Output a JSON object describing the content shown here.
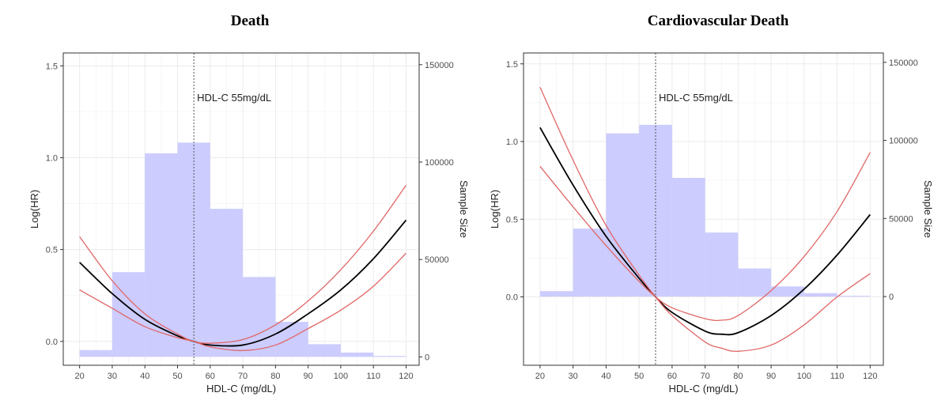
{
  "chart_data": [
    {
      "type": "histogram+line",
      "title": "Death",
      "xlabel": "HDL-C (mg/dL)",
      "ylabel": "Log(HR)",
      "y2label": "Sample Size",
      "annotation": "HDL-C 55mg/dL",
      "ref_x": 55,
      "xlim": [
        15,
        124
      ],
      "ylim": [
        -0.13,
        1.57
      ],
      "y2lim": [
        -4300,
        156000
      ],
      "x_ticks": [
        20,
        30,
        40,
        50,
        60,
        70,
        80,
        90,
        100,
        110,
        120
      ],
      "y_ticks": [
        0.0,
        0.5,
        1.0,
        1.5
      ],
      "y_tick_labels": [
        "0.0",
        "0.5",
        "1.0",
        "1.5"
      ],
      "y2_ticks": [
        0,
        50000,
        100000,
        150000
      ],
      "y2_tick_labels": [
        "0",
        "50000",
        "100000",
        "150000"
      ],
      "histogram": {
        "bin_edges": [
          20,
          30,
          40,
          50,
          60,
          70,
          80,
          90,
          100,
          110,
          120
        ],
        "counts": [
          3500,
          43500,
          104500,
          110000,
          76000,
          41000,
          18000,
          6500,
          2200,
          500
        ]
      },
      "series": [
        {
          "name": "Log(HR)",
          "x": [
            20,
            30,
            40,
            50,
            55,
            60,
            70,
            80,
            90,
            100,
            110,
            120
          ],
          "y": [
            0.43,
            0.26,
            0.12,
            0.03,
            0.0,
            -0.02,
            -0.02,
            0.04,
            0.15,
            0.28,
            0.45,
            0.66
          ]
        },
        {
          "name": "Upper 95% CI",
          "x": [
            20,
            30,
            40,
            50,
            55,
            60,
            70,
            80,
            90,
            100,
            110,
            120
          ],
          "y": [
            0.57,
            0.33,
            0.15,
            0.04,
            0.0,
            -0.01,
            0.01,
            0.09,
            0.22,
            0.39,
            0.6,
            0.85
          ]
        },
        {
          "name": "Lower 95% CI",
          "x": [
            20,
            30,
            40,
            50,
            55,
            60,
            70,
            80,
            90,
            100,
            110,
            120
          ],
          "y": [
            0.28,
            0.18,
            0.08,
            0.02,
            0.0,
            -0.03,
            -0.05,
            -0.02,
            0.07,
            0.17,
            0.3,
            0.48
          ]
        }
      ]
    },
    {
      "type": "histogram+line",
      "title": "Cardiovascular Death",
      "xlabel": "HDL-C (mg/dL)",
      "ylabel": "Log(HR)",
      "y2label": "Sample Size",
      "annotation": "HDL-C 55mg/dL",
      "ref_x": 55,
      "xlim": [
        15,
        124
      ],
      "ylim": [
        -0.44,
        1.57
      ],
      "y2lim": [
        -44000,
        156000
      ],
      "x_ticks": [
        20,
        30,
        40,
        50,
        60,
        70,
        80,
        90,
        100,
        110,
        120
      ],
      "y_ticks": [
        0.0,
        0.5,
        1.0,
        1.5
      ],
      "y_tick_labels": [
        "0.0",
        "0.5",
        "1.0",
        "1.5"
      ],
      "y2_ticks": [
        0,
        50000,
        100000,
        150000
      ],
      "y2_tick_labels": [
        "0",
        "50000",
        "100000",
        "150000"
      ],
      "histogram": {
        "bin_edges": [
          20,
          30,
          40,
          50,
          60,
          70,
          80,
          90,
          100,
          110,
          120
        ],
        "counts": [
          3500,
          43500,
          104500,
          110000,
          76000,
          41000,
          18000,
          6500,
          2200,
          500
        ]
      },
      "series": [
        {
          "name": "Log(HR)",
          "x": [
            20,
            30,
            40,
            50,
            55,
            60,
            70,
            75,
            80,
            90,
            100,
            110,
            120
          ],
          "y": [
            1.09,
            0.72,
            0.39,
            0.12,
            0.0,
            -0.1,
            -0.22,
            -0.24,
            -0.23,
            -0.12,
            0.05,
            0.27,
            0.53
          ]
        },
        {
          "name": "Upper 95% CI",
          "x": [
            20,
            30,
            40,
            50,
            55,
            60,
            70,
            75,
            80,
            90,
            100,
            110,
            120
          ],
          "y": [
            0.84,
            0.58,
            0.33,
            0.1,
            0.0,
            -0.07,
            -0.14,
            -0.15,
            -0.12,
            0.04,
            0.26,
            0.55,
            0.93
          ]
        },
        {
          "name": "Lower 95% CI",
          "x": [
            20,
            30,
            40,
            50,
            55,
            60,
            70,
            75,
            80,
            90,
            100,
            110,
            120
          ],
          "y": [
            1.35,
            0.88,
            0.46,
            0.14,
            0.0,
            -0.12,
            -0.29,
            -0.33,
            -0.35,
            -0.31,
            -0.18,
            0.0,
            0.15
          ]
        }
      ]
    }
  ]
}
